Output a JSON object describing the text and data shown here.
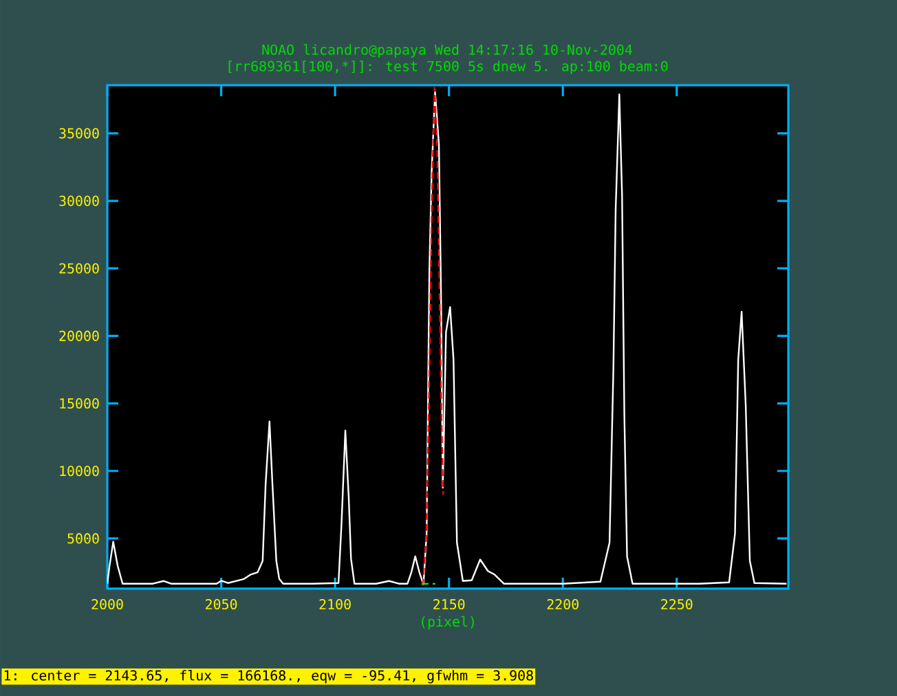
{
  "chart_data": {
    "type": "line",
    "title": "NOAO licandro@papaya Wed 14:17:16 10-Nov-2004",
    "subtitle": "[rr689361[100,*]]: test 7500 5s dnew 5. ap:100 beam:0",
    "xlabel": "(pixel)",
    "annotations": [
      "1: center =  2143.65, flux =  166168., eqw = -95.41, gfwhm =  3.908"
    ],
    "xlim": [
      2000,
      2299
    ],
    "ylim": [
      1280,
      38560
    ],
    "xticks": [
      2000,
      2050,
      2100,
      2150,
      2200,
      2250
    ],
    "yticks": [
      5000,
      10000,
      15000,
      20000,
      25000,
      30000,
      35000
    ],
    "marker": "none",
    "series": [
      {
        "color": "#ffffff",
        "line_style": "solid",
        "x": [
          2000,
          2001,
          2002.6,
          2004.5,
          2006.7,
          2020,
          2024.8,
          2028,
          2048,
          2050,
          2053,
          2060,
          2063,
          2066,
          2068.2,
          2069.5,
          2071.2,
          2072.5,
          2074.2,
          2075.5,
          2077.2,
          2090,
          2101.5,
          2102.8,
          2104.5,
          2106,
          2107,
          2108.5,
          2118,
          2123.7,
          2128,
          2131.8,
          2133.5,
          2135.2,
          2137,
          2138.8,
          2140.2,
          2141.4,
          2142.4,
          2143.9,
          2145.6,
          2146.5,
          2147.3,
          2148.7,
          2150.5,
          2152,
          2153.5,
          2156.1,
          2160,
          2163.7,
          2167.1,
          2170,
          2174.1,
          2200,
          2216.5,
          2220.5,
          2222.2,
          2223.2,
          2224.8,
          2226,
          2227,
          2228.2,
          2230.6,
          2260,
          2273,
          2275.6,
          2277,
          2278.5,
          2280.3,
          2282.1,
          2284.1,
          2298.2
        ],
        "values": [
          1650,
          3000,
          4764,
          3000,
          1650,
          1650,
          1850,
          1650,
          1650,
          1870,
          1700,
          2000,
          2330,
          2500,
          3340,
          9000,
          13664,
          9000,
          3340,
          2000,
          1650,
          1650,
          1700,
          6000,
          12993,
          8000,
          3500,
          1650,
          1650,
          1850,
          1650,
          1650,
          2500,
          3677,
          2500,
          1600,
          5374,
          24840,
          32124,
          38050,
          34157,
          23316,
          8757,
          20268,
          22138,
          18236,
          4692,
          1850,
          1900,
          3443,
          2590,
          2330,
          1650,
          1650,
          1800,
          4692,
          17566,
          29413,
          37885,
          30428,
          14172,
          3677,
          1650,
          1650,
          1750,
          5374,
          18236,
          21792,
          14853,
          3340,
          1700,
          1650
        ]
      },
      {
        "color": "#ff0000",
        "line_style": "dashed",
        "x": [
          2138.5,
          2140,
          2141.2,
          2142.5,
          2143.65,
          2144.8,
          2145.8,
          2146.7,
          2147.5
        ],
        "values": [
          1500,
          5000,
          15000,
          30000,
          38400,
          34000,
          24000,
          14000,
          8250
        ]
      },
      {
        "color": "#00ff00",
        "line_style": "dashed",
        "x": [
          2138,
          2144
        ],
        "values": [
          1640,
          1640
        ]
      }
    ]
  }
}
